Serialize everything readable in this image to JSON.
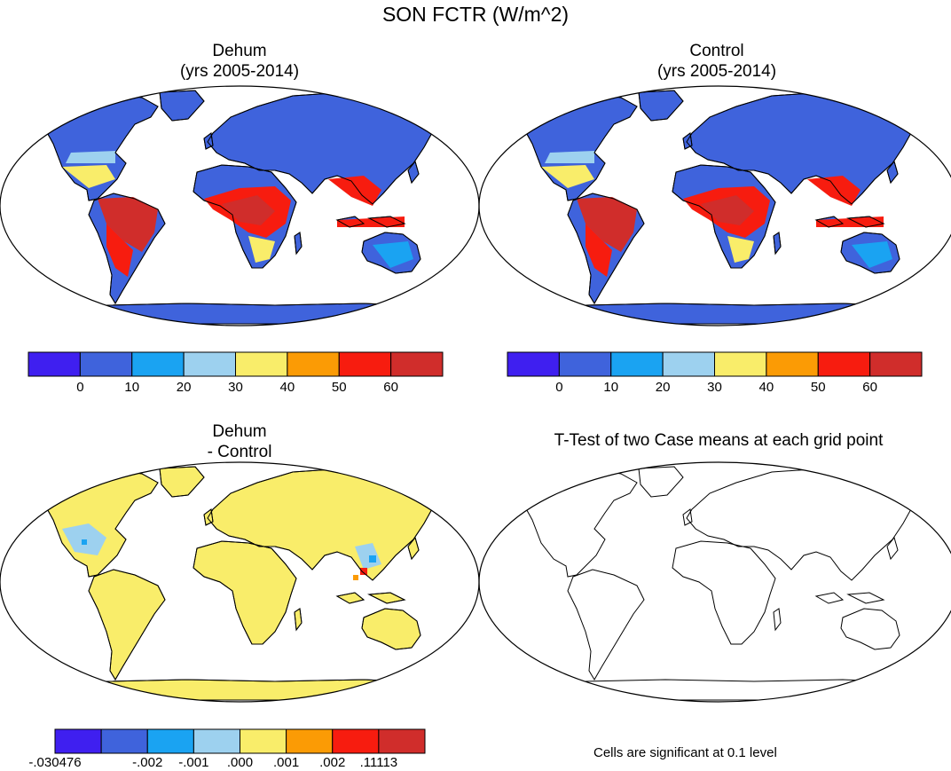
{
  "figure_title": "SON FCTR (W/m^2)",
  "panels": {
    "dehum": {
      "line1": "Dehum",
      "line2": "(yrs 2005-2014)"
    },
    "control": {
      "line1": "Control",
      "line2": "(yrs 2005-2014)"
    },
    "diff": {
      "line1": "Dehum",
      "line2": "- Control"
    },
    "ttest": {
      "line1": "T-Test of two Case means at each grid point"
    }
  },
  "colorbar_main": {
    "colors": [
      "#3f1ff0",
      "#3f63dc",
      "#1aa3f2",
      "#9dd1ef",
      "#f9ed6a",
      "#fb9b05",
      "#f71c0f",
      "#d02d2b"
    ],
    "labels": [
      "0",
      "10",
      "20",
      "30",
      "40",
      "50",
      "60"
    ]
  },
  "colorbar_diff": {
    "colors": [
      "#3f1ff0",
      "#3f63dc",
      "#1aa3f2",
      "#9dd1ef",
      "#f9ed6a",
      "#fb9b05",
      "#f71c0f",
      "#d02d2b"
    ],
    "labels": [
      "-.030476",
      "-.002",
      "-.001",
      ".000",
      ".001",
      ".002",
      ".11113"
    ]
  },
  "significance_note": "Cells are significant at 0.1 level"
}
